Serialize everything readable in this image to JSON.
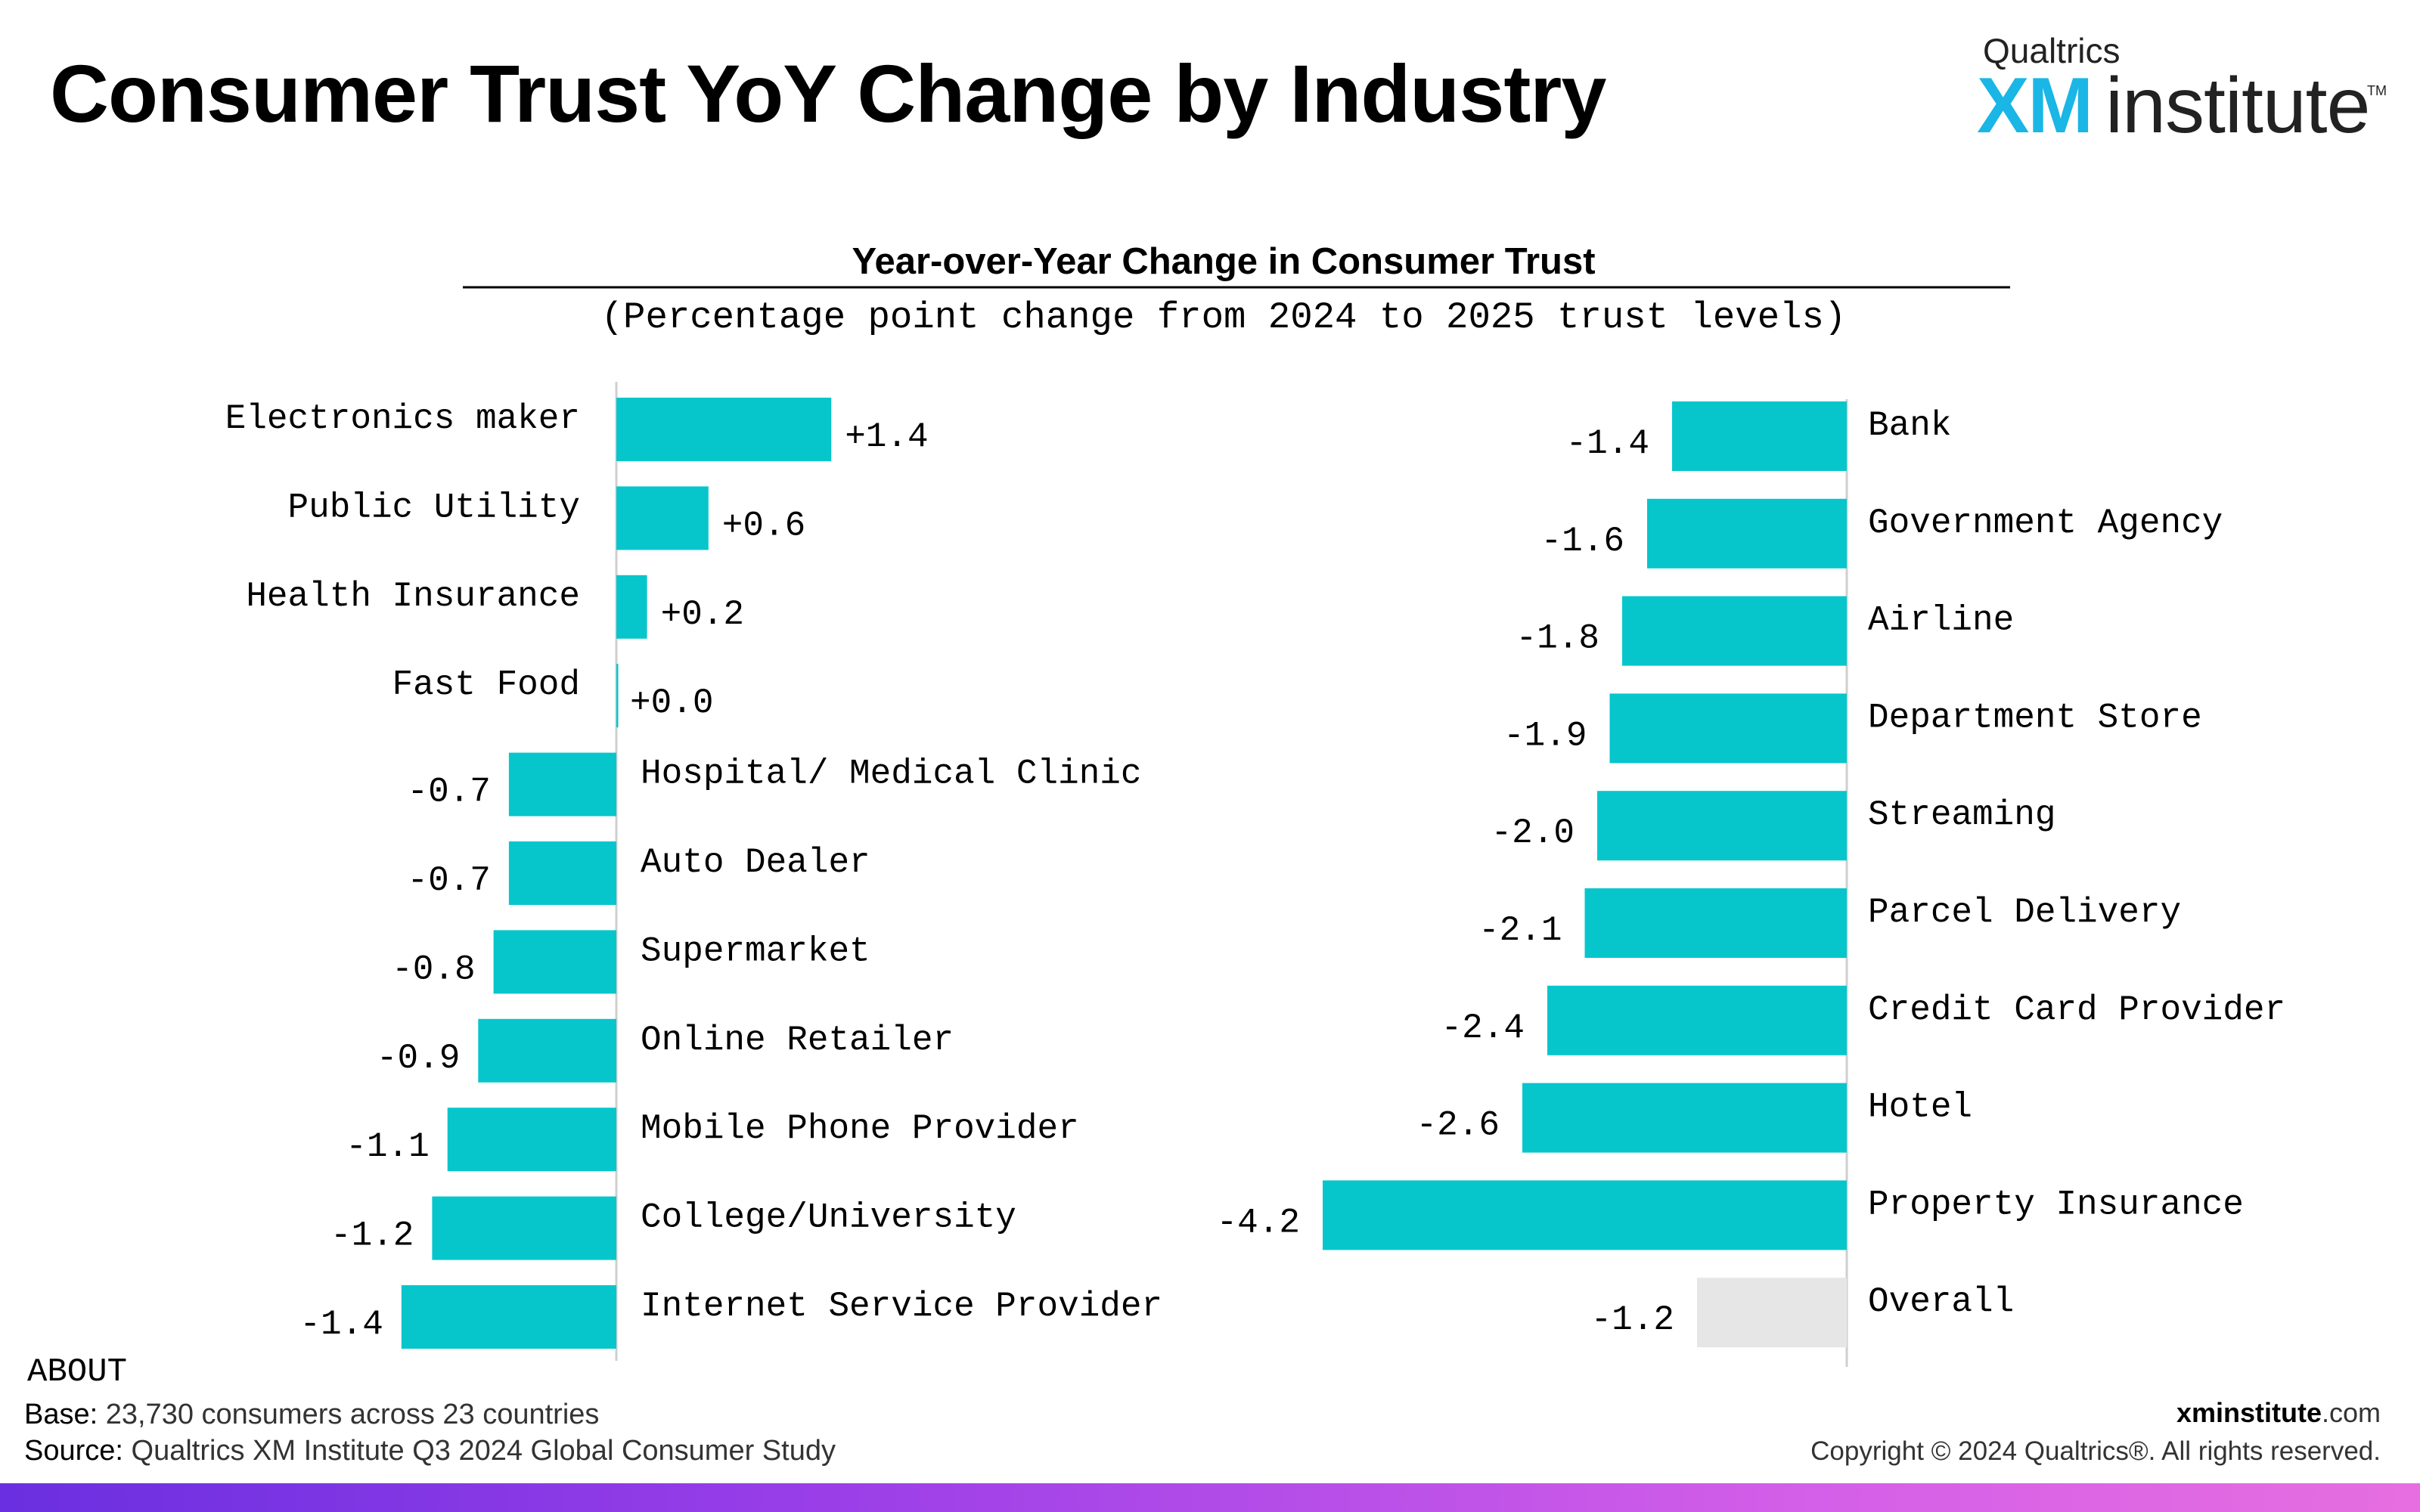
{
  "page": {
    "title": "Consumer Trust YoY Change by Industry"
  },
  "logo": {
    "top_text": "Qualtrics",
    "main_text_a": "XM",
    "main_text_b": "institute",
    "tm": "TM",
    "brand_color": "#19b6e6"
  },
  "chart_data": {
    "type": "bar",
    "orientation": "horizontal",
    "title": "Year-over-Year Change in Consumer Trust",
    "subtitle": "(Percentage point change from 2024 to 2025 trust levels)",
    "bar_color": "#06c6cc",
    "overall_bar_color": "#e6e6e6",
    "panels": [
      {
        "categories": [
          "Electronics maker",
          "Public Utility",
          "Health Insurance",
          "Fast Food",
          "Hospital/ Medical Clinic",
          "Auto Dealer",
          "Supermarket",
          "Online Retailer",
          "Mobile Phone Provider",
          "College/University",
          "Internet Service Provider"
        ],
        "values": [
          1.4,
          0.6,
          0.2,
          0.0,
          -0.7,
          -0.7,
          -0.8,
          -0.9,
          -1.1,
          -1.2,
          -1.4
        ],
        "value_labels": [
          "+1.4",
          "+0.6",
          "+0.2",
          "+0.0",
          "-0.7",
          "-0.7",
          "-0.8",
          "-0.9",
          "-1.1",
          "-1.2",
          "-1.4"
        ]
      },
      {
        "categories": [
          "Bank",
          "Government Agency",
          "Airline",
          "Department Store",
          "Streaming",
          "Parcel Delivery",
          "Credit Card Provider",
          "Hotel",
          "Property Insurance",
          "Overall"
        ],
        "values": [
          -1.4,
          -1.6,
          -1.8,
          -1.9,
          -2.0,
          -2.1,
          -2.4,
          -2.6,
          -4.2,
          -1.2
        ],
        "value_labels": [
          "-1.4",
          "-1.6",
          "-1.8",
          "-1.9",
          "-2.0",
          "-2.1",
          "-2.4",
          "-2.6",
          "-4.2",
          "-1.2"
        ]
      }
    ]
  },
  "footer": {
    "about_heading": "ABOUT",
    "base_key": "Base:",
    "base_value": "23,730 consumers across 23 countries",
    "source_key": "Source:",
    "source_value": "Qualtrics XM Institute Q3 2024 Global Consumer Study",
    "site_bold": "xminstitute",
    "site_rest": ".com",
    "copyright": "Copyright © 2024 Qualtrics®. All rights reserved."
  }
}
